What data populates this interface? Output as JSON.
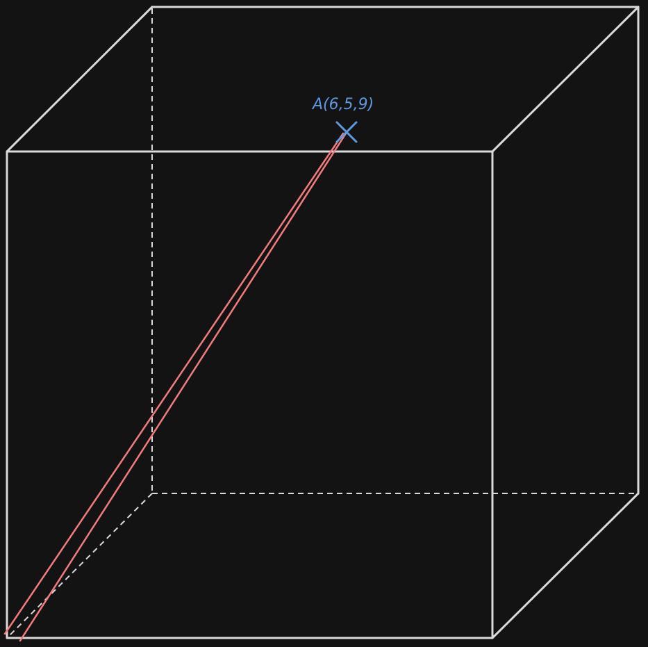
{
  "diagram": {
    "point_a": {
      "label": "A(6,5,9)"
    },
    "colors": {
      "background": "#131314",
      "cube_edges": "#dadada",
      "ray": "#f47c7c",
      "point": "#5c9be0"
    }
  }
}
